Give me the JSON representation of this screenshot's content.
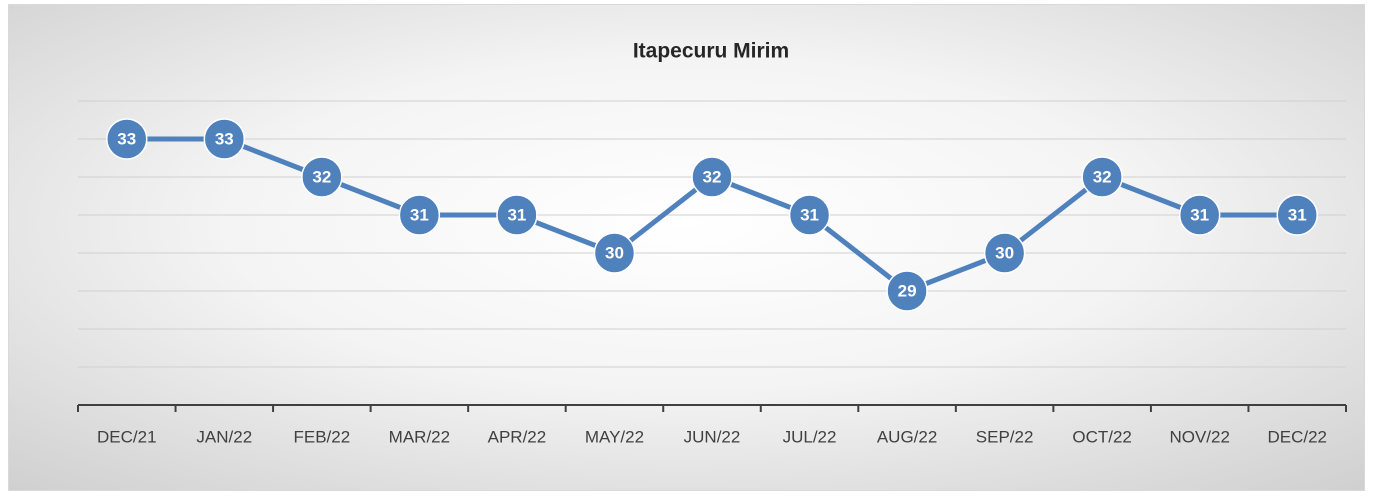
{
  "chart_data": {
    "type": "line",
    "title": "Itapecuru Mirim",
    "categories": [
      "DEC/21",
      "JAN/22",
      "FEB/22",
      "MAR/22",
      "APR/22",
      "MAY/22",
      "JUN/22",
      "JUL/22",
      "AUG/22",
      "SEP/22",
      "OCT/22",
      "NOV/22",
      "DEC/22"
    ],
    "series": [
      {
        "name": "Itapecuru Mirim",
        "color": "#4f81bd",
        "values": [
          33,
          33,
          32,
          31,
          31,
          30,
          32,
          31,
          29,
          30,
          32,
          31,
          31
        ]
      }
    ],
    "ylim": [
      26,
      34
    ],
    "yticks": [
      27,
      28,
      29,
      30,
      31,
      32,
      33,
      34
    ],
    "grid": true
  }
}
